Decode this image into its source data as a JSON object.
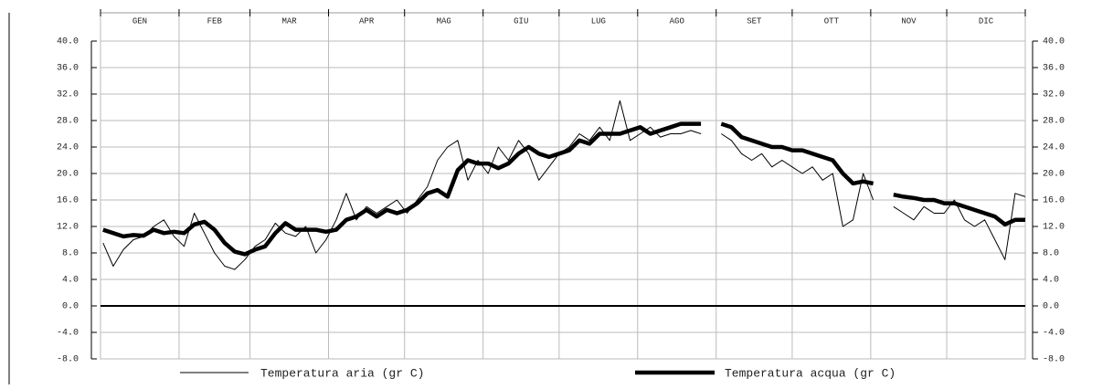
{
  "chart_data": {
    "type": "line",
    "categories": [
      "GEN",
      "FEB",
      "MAR",
      "APR",
      "MAG",
      "GIU",
      "LUG",
      "AGO",
      "SET",
      "OTT",
      "NOV",
      "DIC"
    ],
    "xlim": [
      0,
      365
    ],
    "xticks": [
      0,
      31,
      59,
      90,
      120,
      151,
      181,
      212,
      243,
      273,
      304,
      334,
      365
    ],
    "ylim": [
      -8,
      40
    ],
    "yticks": [
      {
        "value": -8,
        "label": "-8.0"
      },
      {
        "value": -4,
        "label": "-4.0"
      },
      {
        "value": 0,
        "label": "0.0"
      },
      {
        "value": 4,
        "label": "4.0"
      },
      {
        "value": 8,
        "label": "8.0"
      },
      {
        "value": 12,
        "label": "12.0"
      },
      {
        "value": 16,
        "label": "16.0"
      },
      {
        "value": 20,
        "label": "20.0"
      },
      {
        "value": 24,
        "label": "24.0"
      },
      {
        "value": 28,
        "label": "28.0"
      },
      {
        "value": 32,
        "label": "32.0"
      },
      {
        "value": 36,
        "label": "36.0"
      },
      {
        "value": 40,
        "label": "40.0"
      }
    ],
    "grid": true,
    "x": [
      1,
      5,
      9,
      13,
      17,
      21,
      25,
      29,
      33,
      37,
      41,
      45,
      49,
      53,
      57,
      61,
      65,
      69,
      73,
      77,
      81,
      85,
      89,
      93,
      97,
      101,
      105,
      109,
      113,
      117,
      121,
      125,
      129,
      133,
      137,
      141,
      145,
      149,
      153,
      157,
      161,
      165,
      169,
      173,
      177,
      181,
      185,
      189,
      193,
      197,
      201,
      205,
      209,
      213,
      217,
      221,
      225,
      229,
      233,
      237,
      241,
      245,
      249,
      253,
      257,
      261,
      265,
      269,
      273,
      277,
      281,
      285,
      289,
      293,
      297,
      301,
      305,
      309,
      313,
      317,
      321,
      325,
      329,
      333,
      337,
      341,
      345,
      349,
      353,
      357,
      361,
      365
    ],
    "series": [
      {
        "name": "Temperatura aria (gr C)",
        "color": "#000000",
        "width": 1,
        "values": [
          9.5,
          6,
          8.5,
          10,
          10.5,
          12,
          13,
          10.5,
          9,
          14,
          11,
          8,
          6,
          5.5,
          7,
          9,
          10,
          12.5,
          11,
          10.5,
          12,
          8,
          10,
          13,
          17,
          13,
          15,
          14,
          15,
          16,
          14,
          16,
          18,
          22,
          24,
          25,
          19,
          22,
          20,
          24,
          22,
          25,
          23,
          19,
          21,
          23,
          24,
          26,
          25,
          27,
          25,
          31,
          25,
          26,
          27,
          25.5,
          26,
          26,
          26.5,
          26,
          null,
          26,
          25,
          23,
          22,
          23,
          21,
          22,
          21,
          20,
          21,
          19,
          20,
          12,
          13,
          20,
          16,
          null,
          15,
          14,
          13,
          15,
          14,
          14,
          16,
          13,
          12,
          13,
          10,
          7,
          17,
          16.5
        ]
      },
      {
        "name": "Temperatura acqua (gr C)",
        "color": "#000000",
        "width": 4.5,
        "values": [
          11.5,
          11,
          10.5,
          10.7,
          10.6,
          11.5,
          11,
          11.2,
          11,
          12.3,
          12.7,
          11.5,
          9.5,
          8.2,
          7.8,
          8.5,
          9,
          11,
          12.5,
          11.5,
          11.5,
          11.5,
          11.2,
          11.5,
          13,
          13.5,
          14.5,
          13.5,
          14.5,
          14,
          14.5,
          15.5,
          17,
          17.5,
          16.5,
          20.5,
          22,
          21.5,
          21.5,
          20.8,
          21.5,
          23,
          24,
          23,
          22.5,
          23,
          23.5,
          25,
          24.5,
          26,
          26,
          26,
          26.5,
          27,
          26,
          26.5,
          27,
          27.5,
          27.5,
          27.5,
          null,
          27.5,
          27,
          25.5,
          25,
          24.5,
          24,
          24,
          23.5,
          23.5,
          23,
          22.5,
          22,
          20,
          18.5,
          18.8,
          18.5,
          null,
          16.8,
          16.5,
          16.3,
          16,
          16,
          15.5,
          15.5,
          15,
          14.5,
          14,
          13.5,
          12.3,
          13,
          13
        ]
      }
    ]
  }
}
